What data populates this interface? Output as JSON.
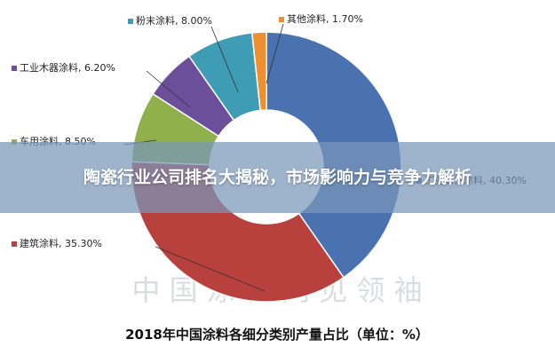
{
  "article": {
    "title": "陶瓷行业公司排名大揭秘，市场影响力与竞争力解析"
  },
  "watermark": {
    "text": "中 国 涂 料 网 见 领 袖"
  },
  "chart_data": {
    "type": "pie",
    "title": "2018年中国涂料各细分类别产量占比（单位：%）",
    "categories": [
      "工业防护涂料",
      "建筑涂料",
      "车用涂料",
      "工业木器涂料",
      "粉末涂料",
      "其他涂料"
    ],
    "values": [
      40.3,
      35.3,
      8.5,
      6.2,
      8.0,
      1.7
    ],
    "labels": [
      "工业防护涂料, 40.30%",
      "建筑涂料, 35.30%",
      "车用涂料, 8.50%",
      "工业木器涂料, 6.20%",
      "粉末涂料, 8.00%",
      "其他涂料, 1.70%"
    ],
    "colors": [
      "#4a72b0",
      "#b9413d",
      "#8fb04a",
      "#6c4f9a",
      "#3f9cb5",
      "#ef8f2f"
    ],
    "donut": true,
    "legend": "none",
    "units": "%"
  }
}
